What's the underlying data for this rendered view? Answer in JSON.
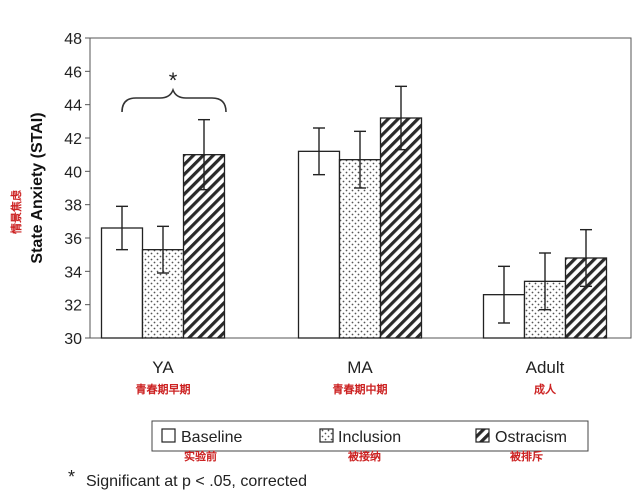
{
  "chart_data": {
    "type": "bar",
    "ylabel": "State Anxiety (STAI)",
    "ylabel_cn": "情景焦虑",
    "ylim": [
      30,
      48
    ],
    "yticks": [
      30,
      32,
      34,
      36,
      38,
      40,
      42,
      44,
      46,
      48
    ],
    "categories": [
      "YA",
      "MA",
      "Adult"
    ],
    "categories_cn": [
      "青春期早期",
      "青春期中期",
      "成人"
    ],
    "series": [
      {
        "name": "Baseline",
        "name_cn": "实验前",
        "pattern": "white",
        "values": [
          36.6,
          41.2,
          32.6
        ],
        "errors": [
          1.3,
          1.4,
          1.7
        ]
      },
      {
        "name": "Inclusion",
        "name_cn": "被接纳",
        "pattern": "dots",
        "values": [
          35.3,
          40.7,
          33.4
        ],
        "errors": [
          1.4,
          1.7,
          1.7
        ]
      },
      {
        "name": "Ostracism",
        "name_cn": "被排斥",
        "pattern": "hatch",
        "values": [
          41.0,
          43.2,
          34.8
        ],
        "errors": [
          2.1,
          1.9,
          1.7
        ]
      }
    ],
    "annotation": {
      "symbol": "*",
      "category": "YA"
    },
    "footnote": "Significant at p < .05, corrected",
    "footnote_symbol": "*"
  }
}
